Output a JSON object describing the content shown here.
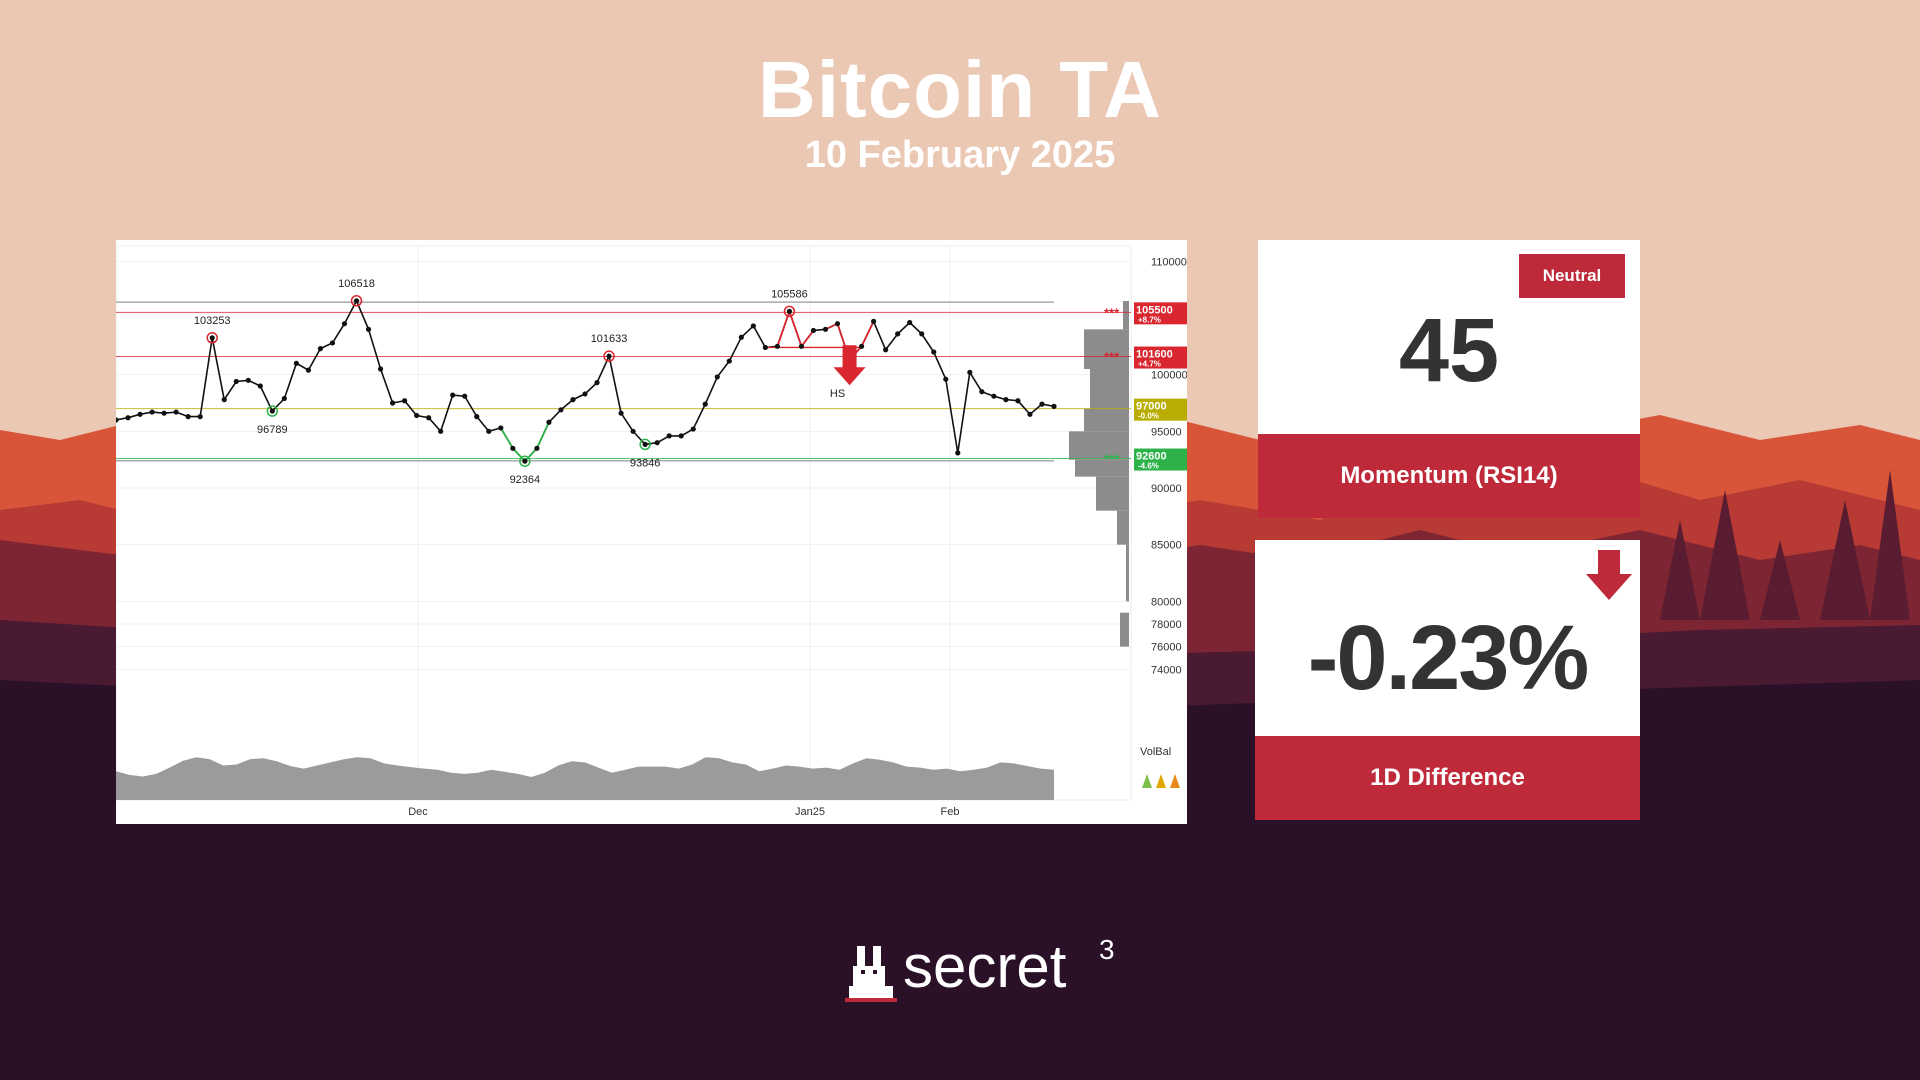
{
  "header": {
    "title": "Bitcoin TA",
    "date": "10 February 2025"
  },
  "colors": {
    "accent": "#bf2a3b",
    "sky": "#ebc8b3",
    "dark": "#2a1128",
    "support": "#2db24a",
    "resistance": "#d9262f",
    "pivot": "#b8ad00"
  },
  "rsi_card": {
    "badge": "Neutral",
    "value": "45",
    "label": "Momentum (RSI14)"
  },
  "diff_card": {
    "value": "-0.23%",
    "label": "1D Difference",
    "icon": "down-arrow-icon"
  },
  "brand": {
    "name": "secret",
    "superscript": "3",
    "icon": "bunny-icon"
  },
  "chart_data": {
    "type": "line",
    "title": "",
    "xlabel": "",
    "ylabel": "",
    "x_labels": [
      "Dec",
      "Jan25",
      "Feb"
    ],
    "y_ticks": [
      110000,
      100000,
      95000,
      90000,
      85000,
      80000,
      78000,
      76000,
      74000
    ],
    "ylim": [
      72000,
      111000
    ],
    "series_price": [
      96000,
      96200,
      96500,
      96700,
      96600,
      96700,
      96300,
      96300,
      103253,
      97800,
      99400,
      99500,
      99000,
      96789,
      97900,
      101000,
      100400,
      102300,
      102800,
      104500,
      106518,
      104000,
      100500,
      97500,
      97700,
      96400,
      96200,
      95000,
      98200,
      98100,
      96300,
      95000,
      95300,
      93500,
      92364,
      93500,
      95800,
      96900,
      97800,
      98300,
      99300,
      101633,
      96600,
      95000,
      93846,
      94000,
      94600,
      94600,
      95200,
      97400,
      99800,
      101200,
      103300,
      104300,
      102400,
      102500,
      105586,
      102500,
      103900,
      104000,
      104500,
      101300,
      102500,
      104700,
      102200,
      103600,
      104600,
      103600,
      102000,
      99600,
      93100,
      100200,
      98500,
      98100,
      97800,
      97700,
      96500,
      97400,
      97200
    ],
    "swing_labels": [
      {
        "index": 8,
        "value": "103253",
        "type": "high"
      },
      {
        "index": 13,
        "value": "96789",
        "type": "low"
      },
      {
        "index": 20,
        "value": "106518",
        "type": "high"
      },
      {
        "index": 34,
        "value": "92364",
        "type": "low"
      },
      {
        "index": 41,
        "value": "101633",
        "type": "high"
      },
      {
        "index": 44,
        "value": "93846",
        "type": "low"
      },
      {
        "index": 56,
        "value": "105586",
        "type": "high"
      }
    ],
    "pattern": {
      "label": "HS",
      "index": 61
    },
    "levels": [
      {
        "value": 105500,
        "label": "105500",
        "pct": "+8.7%",
        "color": "#d9262f",
        "stars": "***"
      },
      {
        "value": 101600,
        "label": "101600",
        "pct": "+4.7%",
        "color": "#d9262f",
        "stars": "***"
      },
      {
        "value": 97000,
        "label": "97000",
        "pct": "-0.0%",
        "color": "#b8ad00",
        "stars": ""
      },
      {
        "value": 92600,
        "label": "92600",
        "pct": "-4.6%",
        "color": "#2db24a",
        "stars": "***"
      }
    ],
    "volume_balance_label": "VolBal",
    "volume_profile": [
      {
        "from": 104000,
        "to": 106500,
        "size": 0.1
      },
      {
        "from": 100500,
        "to": 104000,
        "size": 0.75
      },
      {
        "from": 97000,
        "to": 100500,
        "size": 0.65
      },
      {
        "from": 95000,
        "to": 97000,
        "size": 0.75
      },
      {
        "from": 92500,
        "to": 95000,
        "size": 1.0
      },
      {
        "from": 91000,
        "to": 92500,
        "size": 0.9
      },
      {
        "from": 88000,
        "to": 91000,
        "size": 0.55
      },
      {
        "from": 85000,
        "to": 88000,
        "size": 0.2
      },
      {
        "from": 80000,
        "to": 85000,
        "size": 0.05
      },
      {
        "from": 76000,
        "to": 79000,
        "size": 0.15
      }
    ],
    "volume": [
      0.55,
      0.48,
      0.45,
      0.5,
      0.62,
      0.75,
      0.82,
      0.78,
      0.66,
      0.68,
      0.78,
      0.8,
      0.74,
      0.65,
      0.6,
      0.66,
      0.72,
      0.78,
      0.82,
      0.8,
      0.7,
      0.66,
      0.63,
      0.6,
      0.58,
      0.52,
      0.5,
      0.52,
      0.58,
      0.54,
      0.5,
      0.44,
      0.52,
      0.66,
      0.74,
      0.72,
      0.62,
      0.52,
      0.58,
      0.64,
      0.64,
      0.64,
      0.6,
      0.68,
      0.82,
      0.8,
      0.72,
      0.68,
      0.55,
      0.6,
      0.66,
      0.64,
      0.6,
      0.62,
      0.58,
      0.7,
      0.8,
      0.77,
      0.72,
      0.64,
      0.62,
      0.58,
      0.6,
      0.55,
      0.58,
      0.62,
      0.72,
      0.7,
      0.65,
      0.6,
      0.58
    ]
  }
}
